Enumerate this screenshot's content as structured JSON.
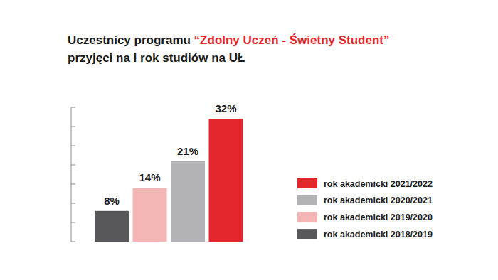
{
  "chart_data": {
    "type": "bar",
    "title": "Uczestnicy programu “Zdolny Uczeń - Świetny Student” przyjęci na I rok studiów na UŁ",
    "categories": [
      "rok akademicki 2018/2019",
      "rok akademicki 2019/2020",
      "rok akademicki 2020/2021",
      "rok akademicki 2021/2022"
    ],
    "values": [
      8,
      14,
      21,
      32
    ],
    "value_labels": [
      "8%",
      "14%",
      "21%",
      "32%"
    ],
    "colors": [
      "#58585a",
      "#f4b6b5",
      "#b3b3b5",
      "#e3262b"
    ],
    "ylim": [
      0,
      35
    ],
    "yticks": [
      0,
      5,
      10,
      15,
      20,
      25,
      30,
      35
    ],
    "grid": false,
    "tick_labels": false,
    "data_labels": true,
    "legend": "right"
  }
}
